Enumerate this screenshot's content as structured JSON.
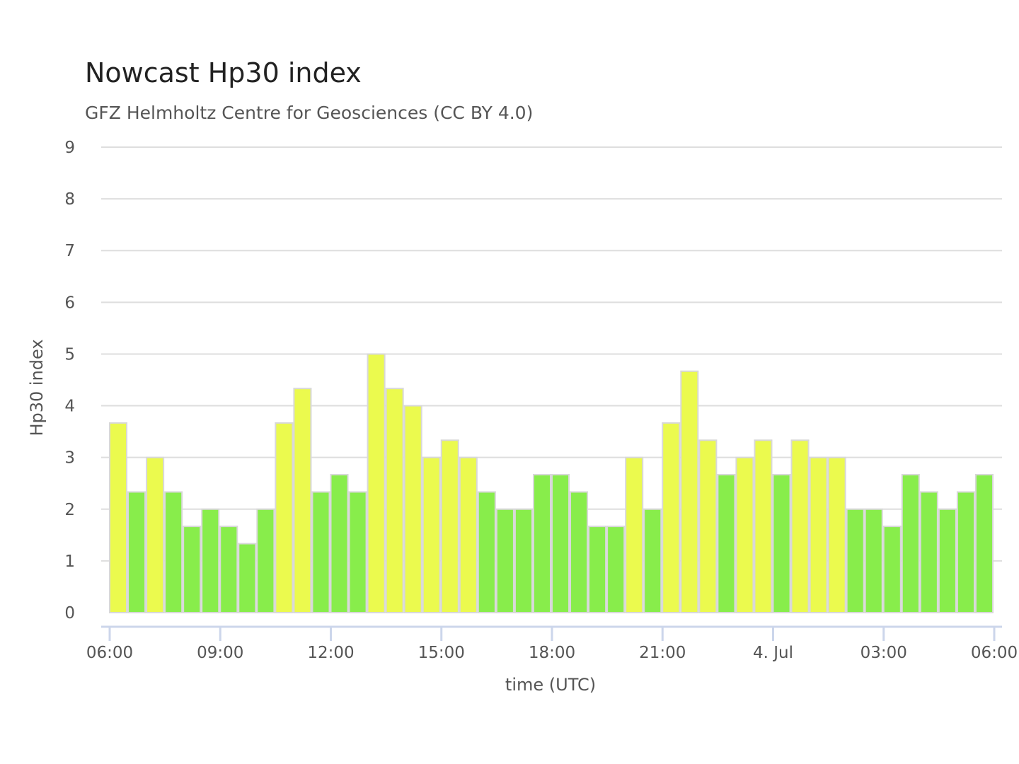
{
  "chart_data": {
    "type": "bar",
    "title": "Nowcast Hp30 index",
    "subtitle": "GFZ Helmholtz Centre for Geosciences (CC BY 4.0)",
    "xlabel": "time (UTC)",
    "ylabel": "Hp30 index",
    "ylim": [
      0,
      9
    ],
    "yticks": [
      "0",
      "1",
      "2",
      "3",
      "4",
      "5",
      "6",
      "7",
      "8",
      "9"
    ],
    "xticks": [
      "06:00",
      "09:00",
      "12:00",
      "15:00",
      "18:00",
      "21:00",
      "4. Jul",
      "03:00",
      "06:00"
    ],
    "grid": true,
    "legend": "none",
    "bar_interval_minutes": 30,
    "values": [
      3.667,
      2.333,
      3,
      2.333,
      1.667,
      2,
      1.667,
      1.333,
      2,
      3.667,
      4.333,
      2.333,
      2.667,
      2.333,
      5,
      4.333,
      4,
      3,
      3.333,
      3,
      2.333,
      2,
      2,
      2.667,
      2.667,
      2.333,
      1.667,
      1.667,
      3,
      2,
      3.667,
      4.667,
      3.333,
      2.667,
      3,
      3.333,
      2.667,
      3.333,
      3,
      3,
      2,
      2,
      1.667,
      2.667,
      2.333,
      2,
      2.333,
      2.667
    ],
    "colors": [
      {
        "min": 0,
        "max": 3,
        "color": "#88ed4b"
      },
      {
        "min": 3,
        "max": 5,
        "color": "#ebfa4e"
      }
    ]
  }
}
